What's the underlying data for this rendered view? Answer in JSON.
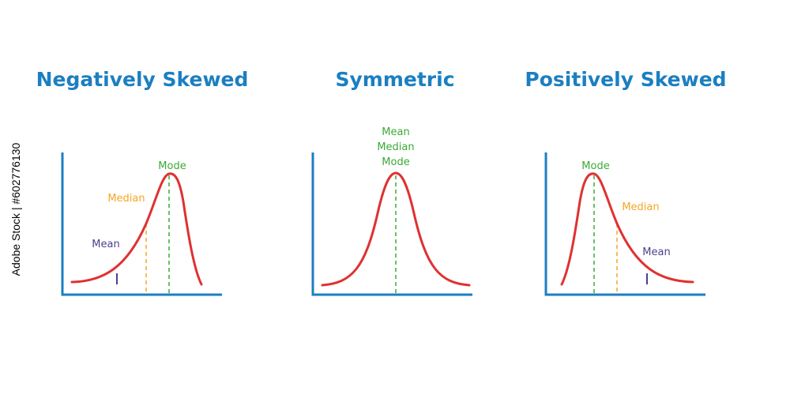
{
  "colors": {
    "title": "#1b7fc1",
    "axis": "#1b7fc1",
    "curve": "#e03131",
    "mode": "#3aaa35",
    "median": "#f5a623",
    "mean": "#4b3f8f"
  },
  "panels": {
    "negative": {
      "title": "Negatively Skewed",
      "labels": {
        "mode": "Mode",
        "median": "Median",
        "mean": "Mean"
      }
    },
    "symmetric": {
      "title": "Symmetric",
      "labels": {
        "mean": "Mean",
        "median": "Median",
        "mode": "Mode"
      }
    },
    "positive": {
      "title": "Positively Skewed",
      "labels": {
        "mode": "Mode",
        "median": "Median",
        "mean": "Mean"
      }
    }
  },
  "watermark": "Adobe Stock | #602776130"
}
